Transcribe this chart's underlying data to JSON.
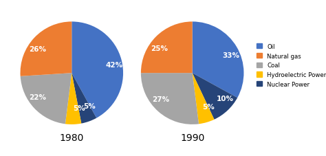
{
  "pie1": {
    "year": "1980",
    "values": [
      42,
      5,
      5,
      22,
      26
    ],
    "labels": [
      "42%",
      "5%",
      "5%",
      "22%",
      "26%"
    ],
    "colors": [
      "#4472C4",
      "#264478",
      "#FFC000",
      "#A5A5A5",
      "#ED7D31"
    ],
    "startangle": 90
  },
  "pie2": {
    "year": "1990",
    "values": [
      33,
      10,
      5,
      27,
      25
    ],
    "labels": [
      "33%",
      "10%",
      "5%",
      "27%",
      "25%"
    ],
    "colors": [
      "#4472C4",
      "#264478",
      "#FFC000",
      "#A5A5A5",
      "#ED7D31"
    ],
    "startangle": 90
  },
  "legend_labels": [
    "Oil",
    "Natural gas",
    "Coal",
    "Hydroelectric Power",
    "Nuclear Power"
  ],
  "legend_colors": [
    "#4472C4",
    "#ED7D31",
    "#A5A5A5",
    "#FFC000",
    "#264478"
  ],
  "label_fontsize": 7.5,
  "year_fontsize": 10,
  "background_color": "#FFFFFF"
}
